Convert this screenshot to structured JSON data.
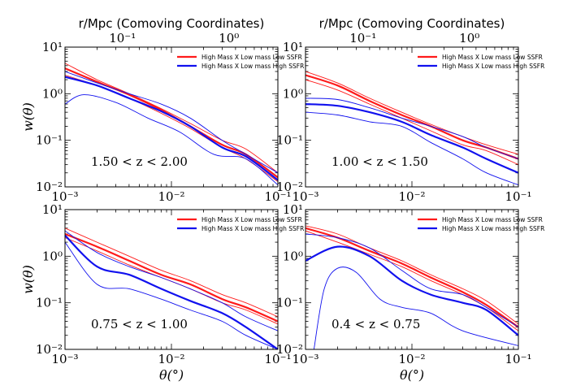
{
  "chart_data": {
    "type": "line",
    "colors": {
      "red": "#ff1a1a",
      "blue": "#1111ee"
    },
    "x_ticks": [
      "10⁻³",
      "10⁻²",
      "10⁻¹"
    ],
    "y_ticks": [
      "10¹",
      "10⁰",
      "10⁻¹",
      "10⁻²"
    ],
    "top_ticks": [
      "10⁻¹",
      "10⁰"
    ],
    "top_axis_label": "r/Mpc (Comoving Coordinates)",
    "xlabel": "θ(°)",
    "ylabel": "w(θ)",
    "legend": [
      "High Mass X Low mass Low SSFR",
      "High Mass X Low mass High SSFR"
    ],
    "panels": [
      {
        "label": "1.50 < z < 2.00",
        "top_axis": true,
        "xlim": [
          0.001,
          0.1
        ],
        "ylim": [
          0.01,
          10
        ],
        "series": [
          {
            "color": "red",
            "thick": true,
            "x": [
              0.001,
              0.002,
              0.004,
              0.008,
              0.015,
              0.03,
              0.05,
              0.1
            ],
            "y": [
              3.5,
              1.8,
              0.95,
              0.45,
              0.2,
              0.08,
              0.05,
              0.016
            ]
          },
          {
            "color": "red",
            "thick": false,
            "x": [
              0.001,
              0.002,
              0.004,
              0.008,
              0.015,
              0.03,
              0.05,
              0.1
            ],
            "y": [
              4.5,
              2.0,
              1.0,
              0.48,
              0.23,
              0.1,
              0.065,
              0.02
            ]
          },
          {
            "color": "red",
            "thick": false,
            "x": [
              0.001,
              0.002,
              0.004,
              0.008,
              0.015,
              0.03,
              0.05,
              0.1
            ],
            "y": [
              2.5,
              1.5,
              0.8,
              0.38,
              0.18,
              0.07,
              0.04,
              0.013
            ]
          },
          {
            "color": "blue",
            "thick": true,
            "x": [
              0.001,
              0.002,
              0.004,
              0.008,
              0.015,
              0.03,
              0.05,
              0.1
            ],
            "y": [
              2.3,
              1.5,
              0.8,
              0.42,
              0.2,
              0.07,
              0.045,
              0.014
            ]
          },
          {
            "color": "blue",
            "thick": false,
            "x": [
              0.001,
              0.002,
              0.004,
              0.008,
              0.015,
              0.03,
              0.05,
              0.1
            ],
            "y": [
              3.0,
              1.7,
              1.0,
              0.6,
              0.3,
              0.1,
              0.05,
              0.02
            ]
          },
          {
            "color": "blue",
            "thick": false,
            "x": [
              0.001,
              0.0015,
              0.003,
              0.006,
              0.012,
              0.025,
              0.05,
              0.1
            ],
            "y": [
              0.6,
              0.95,
              0.65,
              0.3,
              0.15,
              0.05,
              0.04,
              0.011
            ]
          }
        ]
      },
      {
        "label": "1.00 < z < 1.50",
        "top_axis": true,
        "xlim": [
          0.001,
          0.1
        ],
        "ylim": [
          0.01,
          10
        ],
        "series": [
          {
            "color": "red",
            "thick": true,
            "x": [
              0.001,
              0.002,
              0.004,
              0.008,
              0.015,
              0.03,
              0.05,
              0.1
            ],
            "y": [
              2.5,
              1.5,
              0.7,
              0.35,
              0.2,
              0.1,
              0.07,
              0.04
            ]
          },
          {
            "color": "red",
            "thick": false,
            "x": [
              0.001,
              0.002,
              0.004,
              0.008,
              0.015,
              0.03,
              0.05,
              0.1
            ],
            "y": [
              3.0,
              1.7,
              0.8,
              0.4,
              0.22,
              0.12,
              0.08,
              0.05
            ]
          },
          {
            "color": "red",
            "thick": false,
            "x": [
              0.001,
              0.002,
              0.004,
              0.008,
              0.015,
              0.03,
              0.05,
              0.1
            ],
            "y": [
              2.0,
              1.2,
              0.6,
              0.3,
              0.16,
              0.08,
              0.06,
              0.03
            ]
          },
          {
            "color": "blue",
            "thick": true,
            "x": [
              0.001,
              0.002,
              0.004,
              0.008,
              0.015,
              0.03,
              0.05,
              0.1
            ],
            "y": [
              0.6,
              0.55,
              0.4,
              0.25,
              0.13,
              0.07,
              0.04,
              0.02
            ]
          },
          {
            "color": "blue",
            "thick": false,
            "x": [
              0.001,
              0.002,
              0.004,
              0.008,
              0.015,
              0.03,
              0.05,
              0.1
            ],
            "y": [
              0.8,
              0.75,
              0.5,
              0.3,
              0.2,
              0.12,
              0.07,
              0.04
            ]
          },
          {
            "color": "blue",
            "thick": false,
            "x": [
              0.001,
              0.002,
              0.004,
              0.008,
              0.015,
              0.03,
              0.05,
              0.1
            ],
            "y": [
              0.4,
              0.35,
              0.25,
              0.2,
              0.09,
              0.04,
              0.02,
              0.011
            ]
          }
        ]
      },
      {
        "label": "0.75 < z < 1.00",
        "top_axis": false,
        "xlim": [
          0.001,
          0.1
        ],
        "ylim": [
          0.01,
          10
        ],
        "series": [
          {
            "color": "red",
            "thick": true,
            "x": [
              0.001,
              0.002,
              0.004,
              0.008,
              0.015,
              0.03,
              0.05,
              0.1
            ],
            "y": [
              3.0,
              1.6,
              0.8,
              0.4,
              0.25,
              0.12,
              0.08,
              0.04
            ]
          },
          {
            "color": "red",
            "thick": false,
            "x": [
              0.001,
              0.002,
              0.004,
              0.008,
              0.015,
              0.03,
              0.05,
              0.1
            ],
            "y": [
              4.0,
              2.0,
              1.0,
              0.5,
              0.3,
              0.15,
              0.1,
              0.05
            ]
          },
          {
            "color": "red",
            "thick": false,
            "x": [
              0.001,
              0.002,
              0.004,
              0.008,
              0.015,
              0.03,
              0.05,
              0.1
            ],
            "y": [
              2.5,
              1.3,
              0.65,
              0.35,
              0.2,
              0.1,
              0.07,
              0.035
            ]
          },
          {
            "color": "blue",
            "thick": true,
            "x": [
              0.001,
              0.002,
              0.004,
              0.008,
              0.015,
              0.03,
              0.05,
              0.1
            ],
            "y": [
              2.8,
              0.6,
              0.4,
              0.2,
              0.11,
              0.06,
              0.03,
              0.01
            ]
          },
          {
            "color": "blue",
            "thick": false,
            "x": [
              0.001,
              0.002,
              0.004,
              0.008,
              0.015,
              0.03,
              0.05,
              0.1
            ],
            "y": [
              3.5,
              1.2,
              0.6,
              0.35,
              0.2,
              0.1,
              0.05,
              0.025
            ]
          },
          {
            "color": "blue",
            "thick": false,
            "x": [
              0.001,
              0.002,
              0.004,
              0.008,
              0.015,
              0.03,
              0.05,
              0.1
            ],
            "y": [
              2.0,
              0.25,
              0.2,
              0.12,
              0.07,
              0.04,
              0.02,
              0.01
            ]
          }
        ]
      },
      {
        "label": "0.4 < z < 0.75",
        "top_axis": false,
        "xlim": [
          0.001,
          0.1
        ],
        "ylim": [
          0.01,
          10
        ],
        "series": [
          {
            "color": "red",
            "thick": true,
            "x": [
              0.001,
              0.002,
              0.004,
              0.008,
              0.015,
              0.03,
              0.05,
              0.1
            ],
            "y": [
              4.0,
              2.5,
              1.3,
              0.7,
              0.35,
              0.17,
              0.09,
              0.03
            ]
          },
          {
            "color": "red",
            "thick": false,
            "x": [
              0.001,
              0.002,
              0.004,
              0.008,
              0.015,
              0.03,
              0.05,
              0.1
            ],
            "y": [
              4.5,
              3.0,
              1.5,
              0.8,
              0.4,
              0.2,
              0.11,
              0.035
            ]
          },
          {
            "color": "red",
            "thick": false,
            "x": [
              0.001,
              0.002,
              0.004,
              0.008,
              0.015,
              0.03,
              0.05,
              0.1
            ],
            "y": [
              3.5,
              2.0,
              1.1,
              0.6,
              0.3,
              0.15,
              0.08,
              0.025
            ]
          },
          {
            "color": "blue",
            "thick": true,
            "x": [
              0.001,
              0.002,
              0.004,
              0.008,
              0.015,
              0.03,
              0.05,
              0.1
            ],
            "y": [
              0.8,
              1.6,
              1.0,
              0.3,
              0.15,
              0.1,
              0.07,
              0.02
            ]
          },
          {
            "color": "blue",
            "thick": false,
            "x": [
              0.001,
              0.002,
              0.004,
              0.008,
              0.015,
              0.03,
              0.05,
              0.1
            ],
            "y": [
              3.0,
              2.5,
              1.5,
              0.5,
              0.2,
              0.15,
              0.08,
              0.03
            ]
          },
          {
            "color": "blue",
            "thick": false,
            "x": [
              0.0012,
              0.0015,
              0.002,
              0.003,
              0.005,
              0.008,
              0.015,
              0.03,
              0.1
            ],
            "y": [
              0.01,
              0.2,
              0.55,
              0.45,
              0.12,
              0.08,
              0.06,
              0.025,
              0.012
            ]
          }
        ]
      }
    ]
  }
}
